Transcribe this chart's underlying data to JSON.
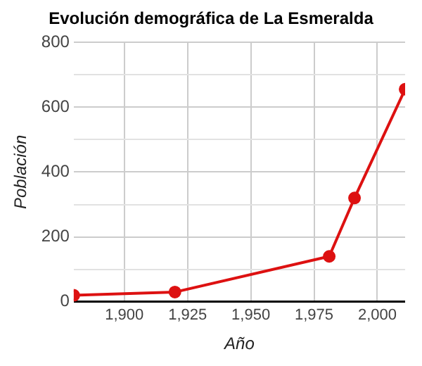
{
  "chart_data": {
    "type": "line",
    "title": "Evolución demográfica de La Esmeralda",
    "xlabel": "Año",
    "ylabel": "Población",
    "x": [
      1880,
      1920,
      1981,
      1991,
      2011
    ],
    "series": [
      {
        "color": "#dd1111",
        "values": [
          20,
          30,
          140,
          320,
          655
        ]
      }
    ],
    "xlim": [
      1880,
      2011
    ],
    "xticks": [
      {
        "value": 1900,
        "label": "1,900"
      },
      {
        "value": 1925,
        "label": "1,925"
      },
      {
        "value": 1950,
        "label": "1,950"
      },
      {
        "value": 1975,
        "label": "1,975"
      },
      {
        "value": 2000,
        "label": "2,000"
      }
    ],
    "ylim": [
      0,
      800
    ],
    "yticks": [
      0,
      {
        "value": 100,
        "label": null
      },
      200,
      {
        "value": 300,
        "label": null
      },
      400,
      {
        "value": 500,
        "label": null
      },
      600,
      {
        "value": 700,
        "label": null
      },
      800
    ],
    "grid": true,
    "legend": false,
    "marker": "circle",
    "line_style": "solid"
  }
}
